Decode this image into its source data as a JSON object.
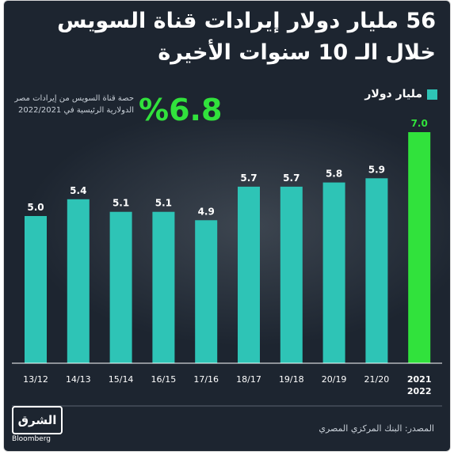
{
  "title": "56 مليار دولار إيرادات قناة السويس خلال الـ 10 سنوات الأخيرة",
  "legend_label": "مليار دولار",
  "share": {
    "value": "%6.8",
    "note": "حصة قناة السويس من إيرادات مصر الدولارية الرئيسية في 2022/2021"
  },
  "source": "المصدر: البنك المركزي المصري",
  "logo": {
    "main": "الشرق",
    "sub": "Bloomberg"
  },
  "colors": {
    "background": "#1d2530",
    "bar": "#2ec4b6",
    "highlight": "#31e23c",
    "text": "#ffffff"
  },
  "chart_data": {
    "type": "bar",
    "categories": [
      "13/12",
      "14/13",
      "15/14",
      "16/15",
      "17/16",
      "18/17",
      "19/18",
      "20/19",
      "21/20",
      "2021 2022"
    ],
    "values": [
      5.0,
      5.4,
      5.1,
      5.1,
      4.9,
      5.7,
      5.7,
      5.8,
      5.9,
      7.0
    ],
    "value_labels": [
      "5.0",
      "5.4",
      "5.1",
      "5.1",
      "4.9",
      "5.7",
      "5.7",
      "5.8",
      "5.9",
      "7.0"
    ],
    "highlight_index": 9,
    "ylim": [
      4.0,
      7.0
    ],
    "grid": false
  }
}
